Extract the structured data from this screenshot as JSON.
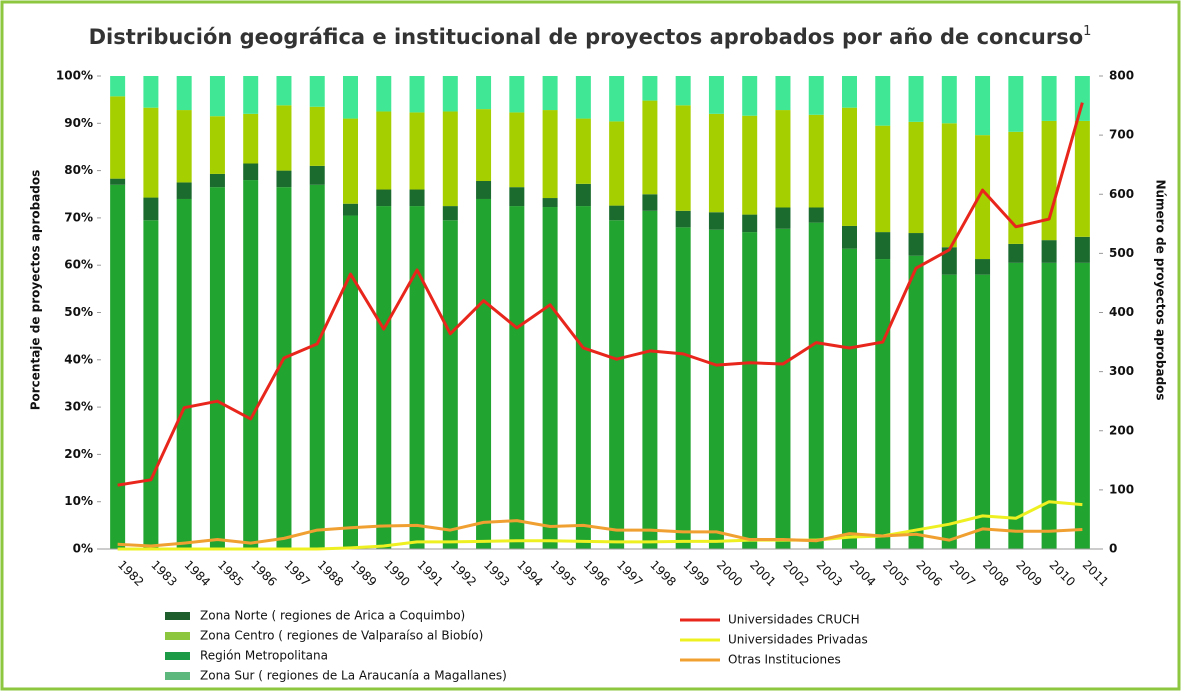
{
  "chart_data": {
    "type": "bar",
    "title": "Distribución geográfica e institucional de proyectos aprobados por año de concurso",
    "title_note": "1",
    "y_label": "Porcentaje de proyectos aprobados",
    "y2_label": "Número de proyectos aprobados",
    "categories": [
      "1982",
      "1983",
      "1984",
      "1985",
      "1986",
      "1987",
      "1988",
      "1989",
      "1990",
      "1991",
      "1992",
      "1993",
      "1994",
      "1995",
      "1996",
      "1997",
      "1998",
      "1999",
      "2000",
      "2001",
      "2002",
      "2003",
      "2004",
      "2005",
      "2006",
      "2007",
      "2008",
      "2009",
      "2010",
      "2011"
    ],
    "ylim": [
      0,
      100
    ],
    "yticks": [
      {
        "value": 0,
        "label": "0%"
      },
      {
        "value": 10,
        "label": "10%"
      },
      {
        "value": 20,
        "label": "20%"
      },
      {
        "value": 30,
        "label": "30%"
      },
      {
        "value": 40,
        "label": "40%"
      },
      {
        "value": 50,
        "label": "50%"
      },
      {
        "value": 60,
        "label": "60%"
      },
      {
        "value": 70,
        "label": "70%"
      },
      {
        "value": 80,
        "label": "80%"
      },
      {
        "value": 90,
        "label": "90%"
      },
      {
        "value": 100,
        "label": "100%"
      }
    ],
    "y2lim": [
      0,
      800
    ],
    "y2ticks": [
      0,
      100,
      200,
      300,
      400,
      500,
      600,
      700,
      800
    ],
    "series": [
      {
        "name": "Zona Norte ( regiones de Arica a Coquimbo)",
        "color": "#1c6b2e",
        "legend_color": "#1d5e2c",
        "values": [
          1.3,
          4.8,
          3.5,
          2.8,
          3.5,
          3.5,
          4.0,
          2.5,
          3.5,
          3.5,
          3.0,
          3.8,
          4.0,
          1.9,
          4.7,
          3.1,
          3.5,
          3.5,
          3.7,
          3.7,
          4.5,
          3.2,
          4.8,
          5.7,
          4.8,
          5.8,
          3.3,
          4.0,
          4.8,
          5.5
        ]
      },
      {
        "name": "Zona Centro ( regiones de Valparaíso al Biobío)",
        "color": "#a6cf00",
        "legend_color": "#8cc63e",
        "values": [
          17.4,
          19.0,
          15.3,
          12.2,
          10.5,
          13.8,
          12.5,
          18.0,
          16.5,
          16.3,
          20.0,
          15.2,
          15.8,
          18.6,
          13.8,
          17.8,
          19.8,
          22.3,
          20.8,
          20.9,
          20.6,
          19.6,
          25.0,
          22.5,
          23.5,
          26.2,
          26.2,
          23.7,
          25.2,
          24.5
        ]
      },
      {
        "name": "Región Metropolitana",
        "color": "#22a530",
        "legend_color": "#1d9a45",
        "values": [
          77.0,
          69.5,
          74.0,
          76.5,
          78.0,
          76.5,
          77.0,
          70.5,
          72.5,
          72.5,
          69.5,
          74.0,
          72.5,
          72.3,
          72.5,
          69.5,
          71.5,
          68.0,
          67.5,
          67.0,
          67.7,
          69.0,
          63.5,
          61.3,
          62.0,
          58.0,
          58.0,
          60.5,
          60.5,
          60.5
        ]
      },
      {
        "name": "Zona Sur ( regiones de La Araucanía a Magallanes)",
        "color": "#40e895",
        "legend_color": "#5cb87c",
        "values": [
          4.3,
          6.7,
          7.2,
          8.5,
          8.0,
          6.2,
          6.5,
          9.0,
          7.5,
          7.7,
          7.5,
          7.0,
          7.7,
          7.2,
          9.0,
          9.6,
          5.2,
          6.2,
          8.0,
          8.4,
          7.2,
          8.2,
          6.7,
          10.5,
          9.7,
          10.0,
          12.5,
          11.8,
          9.5,
          9.5
        ]
      },
      {
        "name": "Universidades CRUCH",
        "color": "#e8261c",
        "axis": "y2",
        "type": "line",
        "values": [
          108,
          117,
          239,
          250,
          220,
          323,
          347,
          465,
          372,
          472,
          364,
          420,
          374,
          413,
          340,
          321,
          335,
          330,
          311,
          315,
          313,
          349,
          340,
          350,
          475,
          506,
          607,
          545,
          558,
          755
        ]
      },
      {
        "name": "Universidades Privadas",
        "color": "#eef022",
        "axis": "y2",
        "type": "line",
        "values": [
          0,
          0,
          0,
          0,
          0,
          0,
          0,
          2,
          5,
          12,
          12,
          13,
          14,
          14,
          13,
          12,
          12,
          13,
          13,
          15,
          15,
          15,
          20,
          22,
          32,
          42,
          56,
          52,
          80,
          75
        ]
      },
      {
        "name": "Otras Instituciones",
        "color": "#f0a030",
        "axis": "y2",
        "type": "line",
        "values": [
          8,
          5,
          10,
          16,
          10,
          18,
          32,
          36,
          39,
          40,
          32,
          45,
          48,
          38,
          40,
          32,
          32,
          29,
          29,
          16,
          16,
          14,
          26,
          22,
          25,
          15,
          34,
          30,
          30,
          33
        ]
      }
    ]
  }
}
